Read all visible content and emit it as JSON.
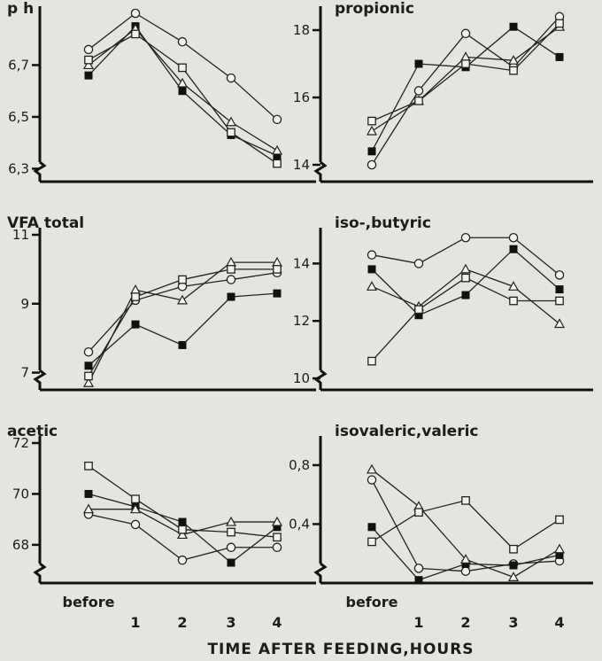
{
  "chart_data": {
    "type": "line",
    "x_axis_title": "TIME AFTER FEEDING,HOURS",
    "x_categories": [
      "before",
      "1",
      "2",
      "3",
      "4"
    ],
    "markers": [
      "open-circle",
      "filled-square",
      "open-triangle",
      "open-square"
    ],
    "panels": [
      {
        "id": "ph",
        "title": "p h",
        "ylim": [
          6.25,
          6.9
        ],
        "ytick_values": [
          6.3,
          6.5,
          6.7
        ],
        "ytick_labels": [
          "6,3",
          "6,5",
          "6,7"
        ],
        "series": [
          {
            "marker": "open-circle",
            "values": [
              6.76,
              6.9,
              6.79,
              6.65,
              6.49
            ]
          },
          {
            "marker": "filled-square",
            "values": [
              6.66,
              6.85,
              6.6,
              6.43,
              6.35
            ]
          },
          {
            "marker": "open-triangle",
            "values": [
              6.7,
              6.84,
              6.63,
              6.48,
              6.37
            ]
          },
          {
            "marker": "open-square",
            "values": [
              6.72,
              6.82,
              6.69,
              6.44,
              6.32
            ]
          }
        ]
      },
      {
        "id": "propionic",
        "title": "propionic",
        "ylim": [
          13.5,
          18.5
        ],
        "ytick_values": [
          14,
          16,
          18
        ],
        "ytick_labels": [
          "14",
          "16",
          "18"
        ],
        "series": [
          {
            "marker": "open-circle",
            "values": [
              14.0,
              16.2,
              17.9,
              16.9,
              18.4
            ]
          },
          {
            "marker": "filled-square",
            "values": [
              14.4,
              17.0,
              16.9,
              18.1,
              17.2
            ]
          },
          {
            "marker": "open-triangle",
            "values": [
              15.0,
              15.9,
              17.2,
              17.1,
              18.1
            ]
          },
          {
            "marker": "open-square",
            "values": [
              15.3,
              15.9,
              17.0,
              16.8,
              18.2
            ]
          }
        ]
      },
      {
        "id": "vfa",
        "title": "VFA total",
        "ylim": [
          6.5,
          11.0
        ],
        "ytick_values": [
          7,
          9,
          11
        ],
        "ytick_labels": [
          "7",
          "9",
          "11"
        ],
        "series": [
          {
            "marker": "open-circle",
            "values": [
              7.6,
              9.1,
              9.5,
              9.7,
              9.9
            ]
          },
          {
            "marker": "filled-square",
            "values": [
              7.2,
              8.4,
              7.8,
              9.2,
              9.3
            ]
          },
          {
            "marker": "open-triangle",
            "values": [
              6.7,
              9.4,
              9.1,
              10.2,
              10.2
            ]
          },
          {
            "marker": "open-square",
            "values": [
              6.9,
              9.2,
              9.7,
              10.0,
              10.0
            ]
          }
        ]
      },
      {
        "id": "butyric",
        "title": "iso-,butyric",
        "ylim": [
          9.6,
          15.0
        ],
        "ytick_values": [
          10,
          12,
          14
        ],
        "ytick_labels": [
          "10",
          "12",
          "14"
        ],
        "series": [
          {
            "marker": "open-circle",
            "values": [
              14.3,
              14.0,
              14.9,
              14.9,
              13.6
            ]
          },
          {
            "marker": "filled-square",
            "values": [
              13.8,
              12.2,
              12.9,
              14.5,
              13.1
            ]
          },
          {
            "marker": "open-triangle",
            "values": [
              13.2,
              12.5,
              13.8,
              13.2,
              11.9
            ]
          },
          {
            "marker": "open-square",
            "values": [
              10.6,
              12.4,
              13.5,
              12.7,
              12.7
            ]
          }
        ]
      },
      {
        "id": "acetic",
        "title": "acetic",
        "ylim": [
          66.5,
          72.0
        ],
        "ytick_values": [
          68,
          70,
          72
        ],
        "ytick_labels": [
          "68",
          "70",
          "72"
        ],
        "series": [
          {
            "marker": "open-circle",
            "values": [
              69.2,
              68.8,
              67.4,
              67.9,
              67.9
            ]
          },
          {
            "marker": "filled-square",
            "values": [
              70.0,
              69.5,
              68.9,
              67.3,
              68.7
            ]
          },
          {
            "marker": "open-triangle",
            "values": [
              69.4,
              69.4,
              68.4,
              68.9,
              68.9
            ]
          },
          {
            "marker": "open-square",
            "values": [
              71.1,
              69.8,
              68.6,
              68.5,
              68.3
            ]
          }
        ]
      },
      {
        "id": "valeric",
        "title": "isovaleric,valeric",
        "ylim": [
          0,
          0.95
        ],
        "ytick_values": [
          0.4,
          0.8
        ],
        "ytick_labels": [
          "0,4",
          "0,8"
        ],
        "series": [
          {
            "marker": "open-circle",
            "values": [
              0.7,
              0.1,
              0.08,
              0.13,
              0.15
            ]
          },
          {
            "marker": "filled-square",
            "values": [
              0.38,
              0.02,
              0.13,
              0.12,
              0.19
            ]
          },
          {
            "marker": "open-triangle",
            "values": [
              0.77,
              0.52,
              0.16,
              0.04,
              0.23
            ]
          },
          {
            "marker": "open-square",
            "values": [
              0.28,
              0.48,
              0.56,
              0.23,
              0.43
            ]
          }
        ]
      }
    ]
  }
}
